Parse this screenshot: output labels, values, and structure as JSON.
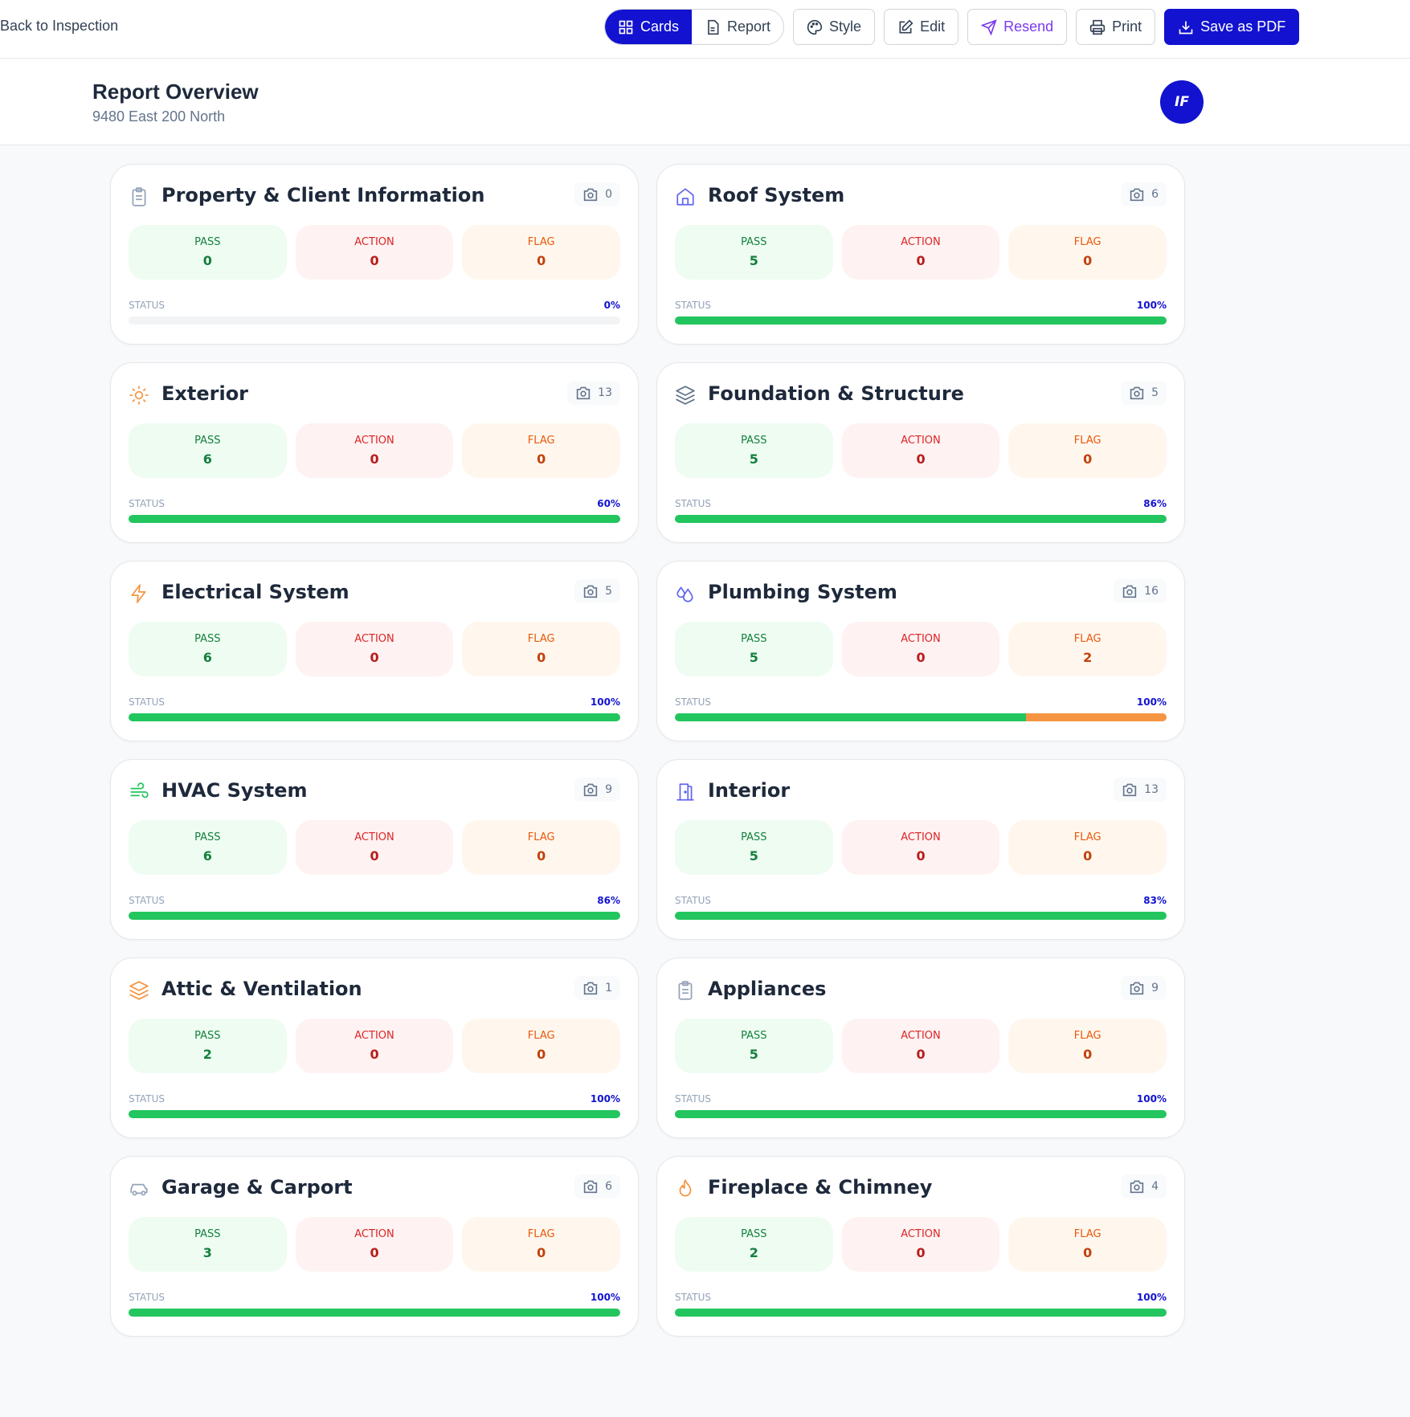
{
  "topbar": {
    "back_label": "Back to Inspection",
    "cards_label": "Cards",
    "report_label": "Report",
    "style_label": "Style",
    "edit_label": "Edit",
    "resend_label": "Resend",
    "print_label": "Print",
    "pdf_label": "Save as PDF"
  },
  "header": {
    "title": "Report Overview",
    "address": "9480 East 200 North",
    "avatar": "IF"
  },
  "labels": {
    "pass": "PASS",
    "action": "ACTION",
    "flag": "FLAG",
    "status": "STATUS"
  },
  "colors": {
    "accent": "#1212d0",
    "pass": "#22c55e",
    "flag": "#f59542"
  },
  "sections": [
    {
      "title": "Property & Client Information",
      "icon": "clipboard-icon",
      "icon_color": "#94a3b8",
      "photos": "0",
      "pass": "0",
      "action": "0",
      "flag": "0",
      "status": "0%"
    },
    {
      "title": "Roof System",
      "icon": "home-icon",
      "icon_color": "#6366f1",
      "photos": "6",
      "pass": "5",
      "action": "0",
      "flag": "0",
      "status": "100%"
    },
    {
      "title": "Exterior",
      "icon": "sun-icon",
      "icon_color": "#f59542",
      "photos": "13",
      "pass": "6",
      "action": "0",
      "flag": "0",
      "status": "60%"
    },
    {
      "title": "Foundation & Structure",
      "icon": "layers-icon",
      "icon_color": "#64748b",
      "photos": "5",
      "pass": "5",
      "action": "0",
      "flag": "0",
      "status": "86%"
    },
    {
      "title": "Electrical System",
      "icon": "zap-icon",
      "icon_color": "#f59542",
      "photos": "5",
      "pass": "6",
      "action": "0",
      "flag": "0",
      "status": "100%"
    },
    {
      "title": "Plumbing System",
      "icon": "droplets-icon",
      "icon_color": "#6366f1",
      "photos": "16",
      "pass": "5",
      "action": "0",
      "flag": "2",
      "status": "100%"
    },
    {
      "title": "HVAC System",
      "icon": "wind-icon",
      "icon_color": "#22c55e",
      "photos": "9",
      "pass": "6",
      "action": "0",
      "flag": "0",
      "status": "86%"
    },
    {
      "title": "Interior",
      "icon": "door-icon",
      "icon_color": "#6366f1",
      "photos": "13",
      "pass": "5",
      "action": "0",
      "flag": "0",
      "status": "83%"
    },
    {
      "title": "Attic & Ventilation",
      "icon": "layers-icon",
      "icon_color": "#f59542",
      "photos": "1",
      "pass": "2",
      "action": "0",
      "flag": "0",
      "status": "100%"
    },
    {
      "title": "Appliances",
      "icon": "clipboard-icon",
      "icon_color": "#94a3b8",
      "photos": "9",
      "pass": "5",
      "action": "0",
      "flag": "0",
      "status": "100%"
    },
    {
      "title": "Garage & Carport",
      "icon": "car-icon",
      "icon_color": "#94a3b8",
      "photos": "6",
      "pass": "3",
      "action": "0",
      "flag": "0",
      "status": "100%"
    },
    {
      "title": "Fireplace & Chimney",
      "icon": "flame-icon",
      "icon_color": "#f59542",
      "photos": "4",
      "pass": "2",
      "action": "0",
      "flag": "0",
      "status": "100%"
    }
  ]
}
